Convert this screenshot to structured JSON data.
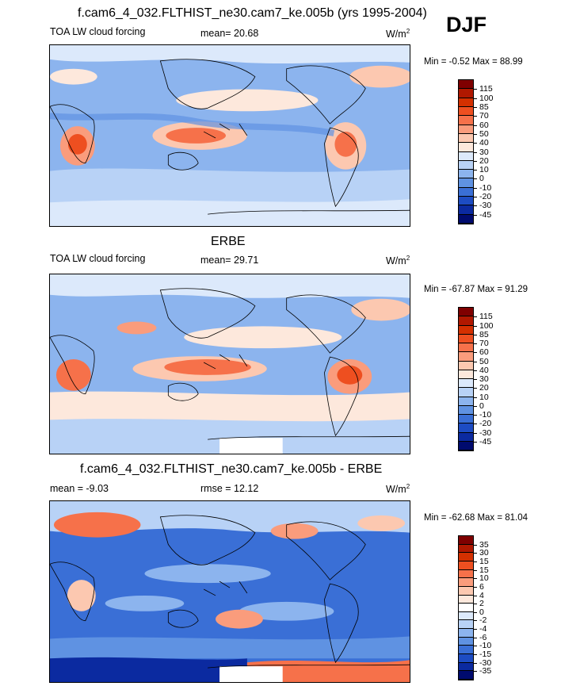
{
  "season": "DJF",
  "panels": [
    {
      "title": "f.cam6_4_032.FLTHIST_ne30.cam7_ke.005b (yrs 1995-2004)",
      "variable": "TOA LW cloud forcing",
      "stat": "mean=  20.68",
      "units": "W/m",
      "units_sup": "2",
      "minmax": "Min =  -0.52 Max =  88.99",
      "colorbar_labels": [
        "115",
        "100",
        "85",
        "70",
        "60",
        "50",
        "40",
        "30",
        "20",
        "10",
        "0",
        "-10",
        "-20",
        "-30",
        "-45"
      ]
    },
    {
      "title": "ERBE",
      "variable": "TOA LW cloud forcing",
      "stat": "mean=  29.71",
      "units": "W/m",
      "units_sup": "2",
      "minmax": "Min = -67.87 Max =  91.29",
      "colorbar_labels": [
        "115",
        "100",
        "85",
        "70",
        "60",
        "50",
        "40",
        "30",
        "20",
        "10",
        "0",
        "-10",
        "-20",
        "-30",
        "-45"
      ]
    },
    {
      "title": "f.cam6_4_032.FLTHIST_ne30.cam7_ke.005b - ERBE",
      "variable": "mean =  -9.03",
      "stat": "rmse =  12.12",
      "units": "W/m",
      "units_sup": "2",
      "minmax": "Min = -62.68 Max =  81.04",
      "colorbar_labels": [
        "35",
        "30",
        "15",
        "15",
        "10",
        "6",
        "4",
        "2",
        "0",
        "-2",
        "-4",
        "-6",
        "-10",
        "-15",
        "-30",
        "-35"
      ]
    }
  ],
  "colors": {
    "abs_scale": [
      "#7f0000",
      "#b01800",
      "#d43000",
      "#ee4f20",
      "#f6714a",
      "#fa9c7c",
      "#fcc8b0",
      "#fde8dc",
      "#dce9fb",
      "#b8d2f6",
      "#8cb4ee",
      "#5f92e2",
      "#3a6fd6",
      "#1d4cc3",
      "#0b2aa0",
      "#000b6e"
    ],
    "diff_scale": [
      "#7f0000",
      "#b01800",
      "#d43000",
      "#ee4f20",
      "#f6714a",
      "#fa9c7c",
      "#fcc8b0",
      "#fde8dc",
      "#ffffff",
      "#dce9fb",
      "#b8d2f6",
      "#8cb4ee",
      "#5f92e2",
      "#3a6fd6",
      "#1d4cc3",
      "#0b2aa0",
      "#000b6e"
    ]
  }
}
